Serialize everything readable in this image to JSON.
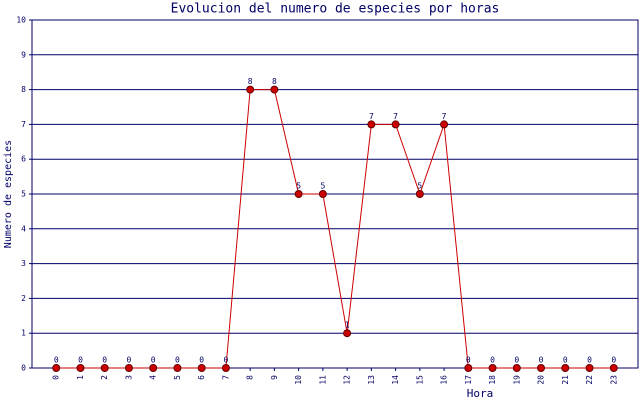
{
  "chart_data": {
    "type": "line",
    "title": "Evolucion del numero de especies por horas",
    "x_label": "Hora",
    "y_label": "Numero de especies",
    "x": [
      0,
      1,
      2,
      3,
      4,
      5,
      6,
      7,
      8,
      9,
      10,
      11,
      12,
      13,
      14,
      15,
      16,
      17,
      18,
      19,
      20,
      21,
      22,
      23
    ],
    "series": [
      {
        "name": "Numero de especies",
        "color": "#cc0000",
        "values": [
          0,
          0,
          0,
          0,
          0,
          0,
          0,
          0,
          8,
          8,
          5,
          5,
          1,
          7,
          7,
          5,
          7,
          0,
          0,
          0,
          0,
          0,
          0,
          0
        ]
      }
    ],
    "xlim": [
      -1,
      24
    ],
    "xticks": [
      0,
      1,
      2,
      3,
      4,
      5,
      6,
      7,
      8,
      9,
      10,
      11,
      12,
      13,
      14,
      15,
      16,
      17,
      18,
      19,
      20,
      21,
      22,
      23
    ],
    "ylim": [
      0,
      10
    ],
    "yticks": [
      0,
      1,
      2,
      3,
      4,
      5,
      6,
      7,
      8,
      9,
      10
    ],
    "grid": true
  }
}
